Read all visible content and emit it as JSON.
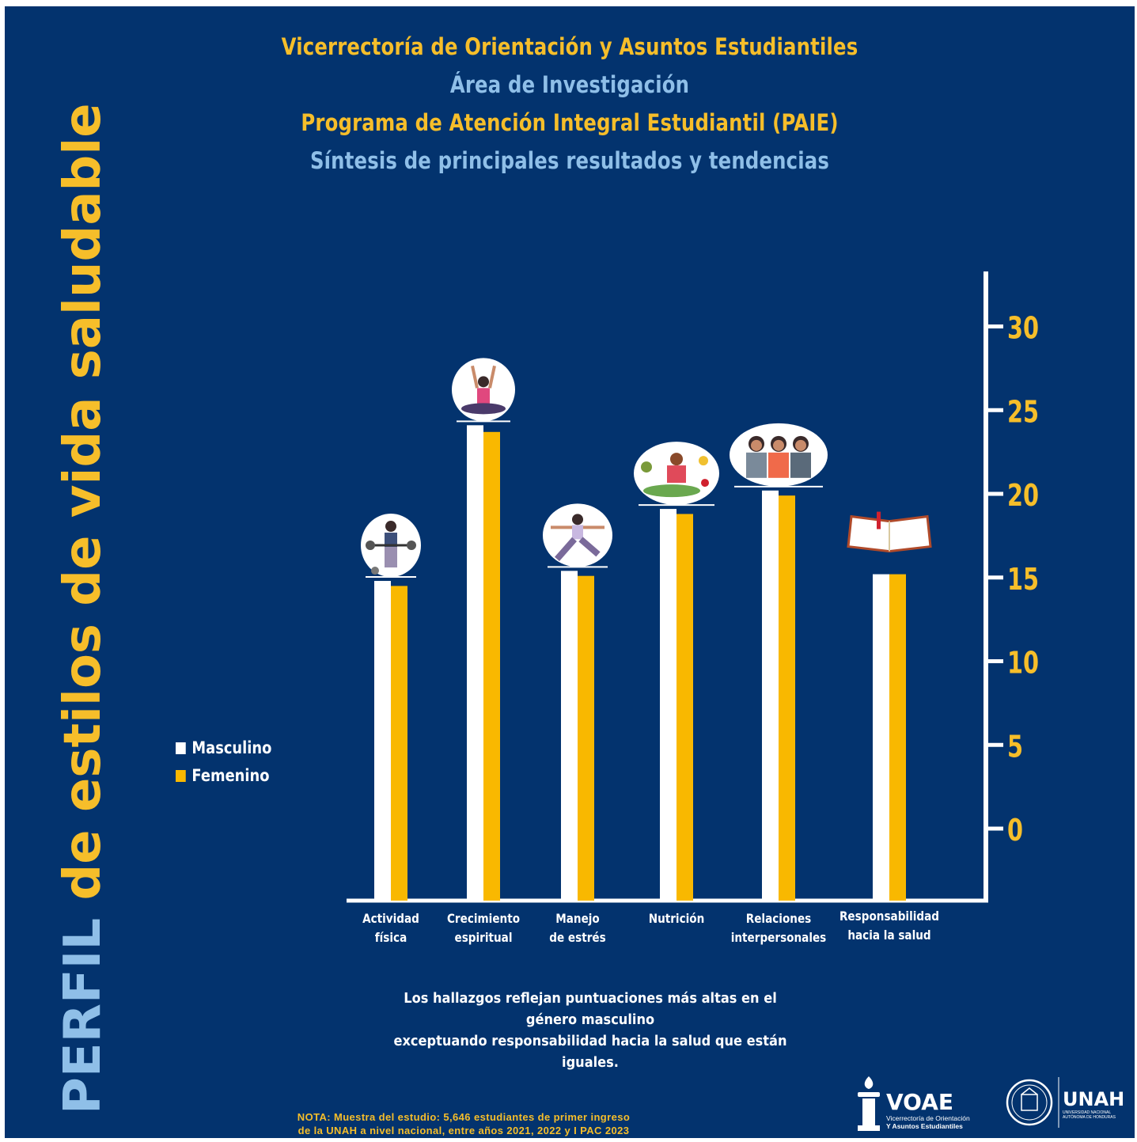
{
  "header": {
    "line1": "Vicerrectoría de Orientación y Asuntos Estudiantiles",
    "line2": "Área de Investigación",
    "line3": "Programa de Atención Integral Estudiantil (PAIE)",
    "line4": "Síntesis de principales resultados y tendencias"
  },
  "side_title": {
    "part1": "PERFIL",
    "part2": "de estilos de vida saludable"
  },
  "colors": {
    "background": "#03336e",
    "accent_yellow": "#f6be2a",
    "accent_blue": "#8fbfe8",
    "masculino": "#ffffff",
    "femenino": "#f9b800"
  },
  "chart_data": {
    "type": "bar",
    "categories": [
      [
        "Actividad",
        "física"
      ],
      [
        "Crecimiento",
        "espiritual"
      ],
      [
        "Manejo",
        "de estrés"
      ],
      [
        "Nutrición"
      ],
      [
        "Relaciones",
        "interpersonales"
      ],
      [
        "Responsabilidad",
        "hacia la salud"
      ]
    ],
    "series": [
      {
        "name": "Masculino",
        "color": "#ffffff",
        "values": [
          14.8,
          24.1,
          15.4,
          19.1,
          20.2,
          15.2
        ]
      },
      {
        "name": "Femenino",
        "color": "#f9b800",
        "values": [
          14.5,
          23.7,
          15.1,
          18.8,
          19.9,
          15.2
        ]
      }
    ],
    "y_axis": {
      "position": "right",
      "ticks": [
        0,
        5,
        10,
        15,
        20,
        25,
        30
      ],
      "range": [
        -4.3,
        32
      ]
    },
    "legend_position": "left",
    "category_icons": [
      "weightlifting-icon",
      "meditation-icon",
      "yoga-icon",
      "healthy-food-icon",
      "people-group-icon",
      "book-icon"
    ]
  },
  "finding": {
    "line1": "Los hallazgos reflejan puntuaciones más altas en el género masculino",
    "line2": "exceptuando responsabilidad hacia la salud que están iguales."
  },
  "note": {
    "line1": "NOTA: Muestra del estudio: 5,646 estudiantes de primer ingreso",
    "line2": "de la UNAH a nivel nacional, entre años 2021, 2022 y I PAC 2023"
  },
  "logos": {
    "voae": {
      "name": "VOAE",
      "sub1": "Vicerrectoría de Orientación",
      "sub2": "Y Asuntos Estudiantiles"
    },
    "unah": {
      "name": "UNAH",
      "sub1": "UNIVERSIDAD NACIONAL",
      "sub2": "AUTÓNOMA DE HONDURAS"
    }
  }
}
